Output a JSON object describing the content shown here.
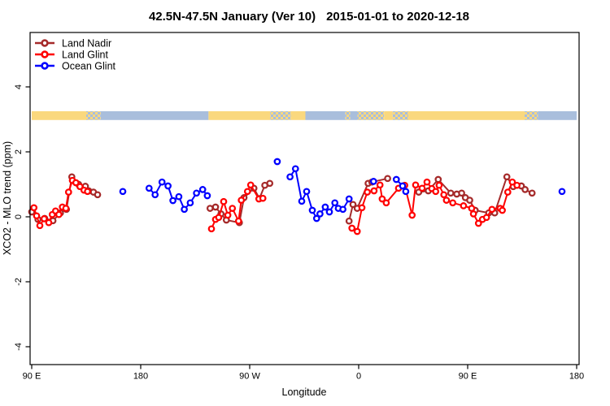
{
  "chart_data": {
    "type": "line",
    "title": "42.5N-47.5N January (Ver 10)   2015-01-01 to 2020-12-18",
    "title_left": "42.5N-47.5N January (Ver 10)",
    "title_right": "2015-01-01 to 2020-12-18",
    "xlabel": "Longitude",
    "ylabel": "XCO2 - MLO trend (ppm)",
    "x_axis": {
      "note": "axis spans 450 degrees of longitude starting at 90E and wrapping through the dateline",
      "ticks": [
        {
          "pos": 0,
          "label": "90 E"
        },
        {
          "pos": 90,
          "label": "180"
        },
        {
          "pos": 180,
          "label": "90 W"
        },
        {
          "pos": 270,
          "label": "0"
        },
        {
          "pos": 360,
          "label": "90 E"
        },
        {
          "pos": 450,
          "label": "180"
        }
      ]
    },
    "y_axis": {
      "ticks": [
        4,
        2,
        0,
        -2,
        -4
      ],
      "range": [
        -4.55,
        5.68
      ],
      "grid": false
    },
    "legend": {
      "position": "top-left",
      "items": [
        {
          "name": "Land Nadir",
          "color": "#A52A2A"
        },
        {
          "name": "Land Glint",
          "color": "#FF0000"
        },
        {
          "name": "Ocean Glint",
          "color": "#0000FF"
        }
      ]
    },
    "map_band": {
      "value_top": 3.25,
      "value_bottom": 2.98,
      "land_color": "#FAD87E",
      "ocean_color": "#A9BEDC",
      "segments": [
        {
          "from": 0,
          "to": 45,
          "type": "land"
        },
        {
          "from": 45,
          "to": 57,
          "type": "coast"
        },
        {
          "from": 57,
          "to": 146,
          "type": "ocean"
        },
        {
          "from": 146,
          "to": 197,
          "type": "land"
        },
        {
          "from": 197,
          "to": 214,
          "type": "coast"
        },
        {
          "from": 214,
          "to": 226,
          "type": "land"
        },
        {
          "from": 226,
          "to": 259,
          "type": "ocean"
        },
        {
          "from": 259,
          "to": 263,
          "type": "coast"
        },
        {
          "from": 263,
          "to": 269,
          "type": "ocean"
        },
        {
          "from": 269,
          "to": 291,
          "type": "coast"
        },
        {
          "from": 291,
          "to": 298,
          "type": "land"
        },
        {
          "from": 298,
          "to": 311,
          "type": "coast"
        },
        {
          "from": 311,
          "to": 407,
          "type": "land"
        },
        {
          "from": 407,
          "to": 418,
          "type": "coast"
        },
        {
          "from": 418,
          "to": 450,
          "type": "ocean"
        }
      ]
    },
    "series": [
      {
        "name": "Land Nadir",
        "color": "#A52A2A",
        "clusters": [
          [
            [
              0,
              0.15
            ],
            [
              5.2,
              -0.08
            ],
            [
              10.7,
              -0.05
            ],
            [
              17.5,
              -0.12
            ],
            [
              23.7,
              0.12
            ],
            [
              28.7,
              0.23
            ],
            [
              33.1,
              1.23
            ],
            [
              38.7,
              1.0
            ],
            [
              44.3,
              0.94
            ],
            [
              47,
              0.8
            ],
            [
              51,
              0.76
            ],
            [
              54.4,
              0.68
            ]
          ],
          [
            [
              147.3,
              0.26
            ],
            [
              151.8,
              0.3
            ],
            [
              156.3,
              0.09
            ],
            [
              160.7,
              -0.1
            ],
            [
              171.5,
              -0.18
            ],
            [
              175.3,
              0.59
            ],
            [
              183.5,
              0.88
            ],
            [
              188,
              0.56
            ],
            [
              192.5,
              0.97
            ],
            [
              196.6,
              1.03
            ]
          ],
          [
            [
              262.1,
              -0.13
            ],
            [
              265.3,
              0.38
            ],
            [
              268.8,
              0.26
            ],
            [
              277.8,
              1.03
            ],
            [
              280.9,
              1.07
            ],
            [
              293.9,
              1.18
            ]
          ],
          [
            [
              319.6,
              0.76
            ],
            [
              327.5,
              0.8
            ],
            [
              335.7,
              1.15
            ],
            [
              346,
              0.73
            ],
            [
              351,
              0.7
            ],
            [
              355,
              0.73
            ],
            [
              358.1,
              0.59
            ],
            [
              361.7,
              0.51
            ],
            [
              366.2,
              0.2
            ],
            [
              377.4,
              0.12
            ],
            [
              382.3,
              0.12
            ],
            [
              392.4,
              1.23
            ],
            [
              397.6,
              0.93
            ],
            [
              404.3,
              0.95
            ],
            [
              407.4,
              0.84
            ],
            [
              413.2,
              0.73
            ]
          ]
        ]
      },
      {
        "name": "Land Glint",
        "color": "#FF0000",
        "clusters": [
          [
            [
              1.8,
              0.28
            ],
            [
              4,
              0.03
            ],
            [
              6.7,
              -0.27
            ],
            [
              10.3,
              -0.06
            ],
            [
              14.1,
              -0.18
            ],
            [
              17,
              0.07
            ],
            [
              19.7,
              0.18
            ],
            [
              22.4,
              0.07
            ],
            [
              25.3,
              0.3
            ],
            [
              28.2,
              0.26
            ],
            [
              30.4,
              0.76
            ],
            [
              33.6,
              1.12
            ],
            [
              36.5,
              1.05
            ],
            [
              39.8,
              0.93
            ],
            [
              43.2,
              0.82
            ],
            [
              46.1,
              0.78
            ]
          ],
          [
            [
              148.4,
              -0.37
            ],
            [
              151.8,
              -0.08
            ],
            [
              154.4,
              -0.02
            ],
            [
              158.5,
              0.47
            ],
            [
              161.9,
              0.05
            ],
            [
              165.7,
              0.26
            ],
            [
              170.8,
              -0.13
            ],
            [
              173.1,
              0.51
            ],
            [
              178.2,
              0.78
            ],
            [
              180.8,
              0.98
            ],
            [
              187.6,
              0.55
            ],
            [
              190.9,
              0.57
            ]
          ],
          [
            [
              264.4,
              -0.35
            ],
            [
              268.8,
              -0.45
            ],
            [
              272.7,
              0.28
            ],
            [
              277.1,
              0.76
            ],
            [
              282.7,
              0.8
            ],
            [
              287.6,
              0.98
            ],
            [
              289.4,
              0.55
            ],
            [
              292.8,
              0.43
            ],
            [
              302.9,
              0.88
            ],
            [
              308,
              0.97
            ],
            [
              314.1,
              0.05
            ],
            [
              317,
              0.98
            ],
            [
              322.4,
              0.88
            ],
            [
              326.4,
              1.07
            ],
            [
              330.4,
              0.87
            ],
            [
              333.6,
              0.78
            ],
            [
              336.4,
              0.97
            ],
            [
              340.3,
              0.68
            ],
            [
              342.5,
              0.51
            ],
            [
              347.7,
              0.43
            ],
            [
              356.6,
              0.34
            ],
            [
              363.3,
              0.26
            ],
            [
              364.8,
              0.09
            ],
            [
              368.9,
              -0.2
            ],
            [
              372.2,
              -0.08
            ],
            [
              375.6,
              -0.02
            ],
            [
              380.1,
              0.23
            ],
            [
              386.8,
              0.26
            ],
            [
              388.6,
              0.2
            ],
            [
              393.1,
              0.76
            ],
            [
              396.9,
              1.07
            ],
            [
              400.7,
              0.97
            ]
          ]
        ]
      },
      {
        "name": "Ocean Glint",
        "color": "#0000FF",
        "clusters": [
          [
            [
              75.2,
              0.78
            ]
          ],
          [
            [
              96.9,
              0.88
            ],
            [
              101.9,
              0.68
            ],
            [
              107.6,
              1.07
            ],
            [
              112.6,
              0.95
            ],
            [
              116.6,
              0.5
            ],
            [
              121.5,
              0.62
            ],
            [
              126,
              0.23
            ],
            [
              130.9,
              0.43
            ],
            [
              136.1,
              0.73
            ],
            [
              141.2,
              0.84
            ],
            [
              145,
              0.65
            ]
          ],
          [
            [
              202.8,
              1.7
            ]
          ],
          [
            [
              213.3,
              1.23
            ],
            [
              217.8,
              1.48
            ],
            [
              223,
              0.48
            ],
            [
              227,
              0.78
            ],
            [
              231.7,
              0.2
            ],
            [
              235.3,
              -0.05
            ],
            [
              238,
              0.09
            ],
            [
              242.4,
              0.3
            ],
            [
              245.8,
              0.15
            ],
            [
              250.3,
              0.43
            ],
            [
              253.2,
              0.26
            ],
            [
              257,
              0.23
            ],
            [
              262.1,
              0.55
            ]
          ],
          [
            [
              282.3,
              1.09
            ]
          ],
          [
            [
              301.1,
              1.15
            ],
            [
              306.3,
              0.95
            ],
            [
              308.9,
              0.78
            ]
          ],
          [
            [
              437.9,
              0.78
            ]
          ]
        ]
      }
    ]
  }
}
